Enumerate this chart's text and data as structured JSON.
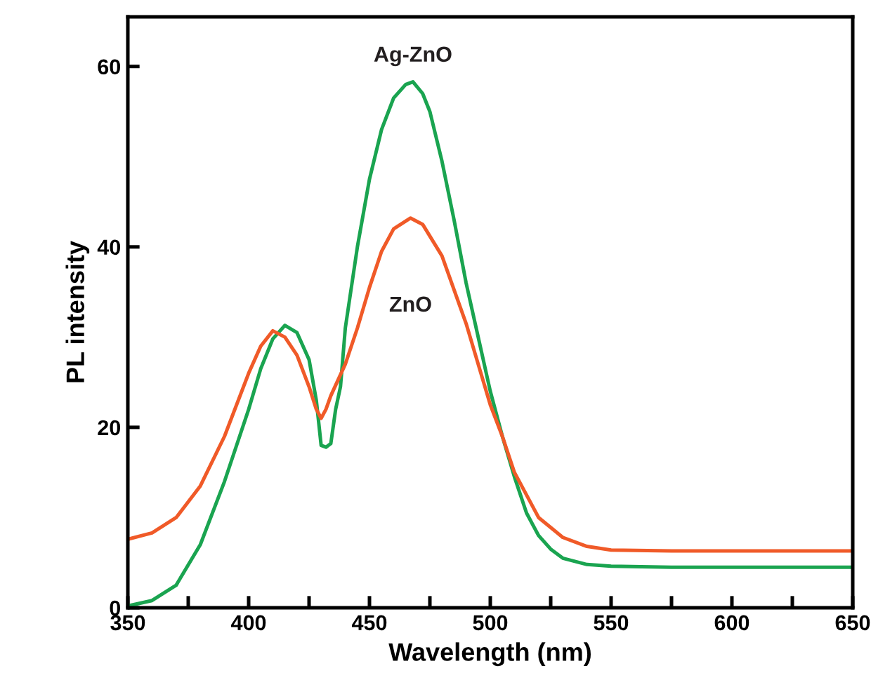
{
  "chart_data": {
    "type": "line",
    "xlabel": "Wavelength (nm)",
    "ylabel": "PL intensity",
    "xlim": [
      350,
      650
    ],
    "ylim": [
      0,
      65.5
    ],
    "xticks": [
      350,
      {
        "value": 375,
        "label": null
      },
      400,
      {
        "value": 425,
        "label": null
      },
      450,
      {
        "value": 475,
        "label": null
      },
      500,
      {
        "value": 525,
        "label": null
      },
      550,
      {
        "value": 575,
        "label": null
      },
      600,
      {
        "value": 625,
        "label": null
      },
      650
    ],
    "yticks": [
      0,
      20,
      40,
      60
    ],
    "grid": false,
    "legend": false,
    "marker": "none",
    "line_style": "solid",
    "series": [
      {
        "name": "Ag-ZnO",
        "color": "#1aa450",
        "x": [
          350,
          360,
          370,
          380,
          390,
          400,
          405,
          410,
          415,
          420,
          425,
          428,
          430,
          432,
          434,
          436,
          438,
          440,
          445,
          450,
          455,
          460,
          465,
          468,
          472,
          475,
          480,
          485,
          490,
          495,
          500,
          505,
          510,
          515,
          520,
          525,
          530,
          540,
          550,
          575,
          600,
          650
        ],
        "values": [
          0.2,
          0.8,
          2.5,
          7,
          14,
          22,
          26.5,
          29.8,
          31.3,
          30.5,
          27.5,
          23,
          18,
          17.8,
          18.2,
          22,
          24.5,
          31,
          40,
          47.5,
          53,
          56.5,
          58,
          58.3,
          57,
          55,
          49.5,
          43,
          36,
          30,
          24,
          19,
          14.5,
          10.5,
          8,
          6.5,
          5.5,
          4.8,
          4.6,
          4.5,
          4.5,
          4.5
        ]
      },
      {
        "name": "ZnO",
        "color": "#f05a28",
        "x": [
          350,
          360,
          370,
          380,
          390,
          400,
          405,
          410,
          415,
          420,
          425,
          428,
          430,
          432,
          434,
          440,
          445,
          450,
          455,
          460,
          467,
          472,
          480,
          490,
          500,
          505,
          510,
          520,
          530,
          540,
          550,
          575,
          650
        ],
        "values": [
          7.6,
          8.3,
          10,
          13.5,
          19,
          26,
          29,
          30.7,
          30,
          28,
          24.5,
          22,
          21,
          22,
          23.5,
          27,
          31,
          35.5,
          39.5,
          42,
          43.2,
          42.5,
          39,
          31.5,
          22.5,
          19,
          15,
          10,
          7.8,
          6.8,
          6.4,
          6.3,
          6.3
        ]
      }
    ]
  }
}
